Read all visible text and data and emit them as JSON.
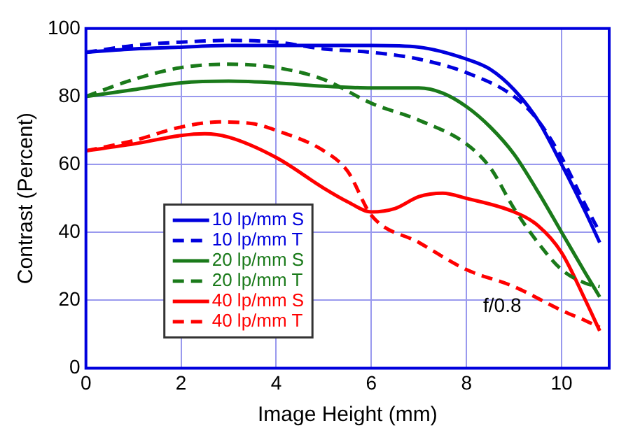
{
  "chart_data": {
    "type": "line",
    "xlabel": "Image Height (mm)",
    "ylabel": "Contrast (Percent)",
    "xlim": [
      0,
      11
    ],
    "xticks": [
      0,
      2,
      4,
      6,
      8,
      10
    ],
    "ylim": [
      0,
      100
    ],
    "yticks": [
      0,
      20,
      40,
      60,
      80,
      100
    ],
    "grid": true,
    "legend": "bottom left",
    "marker": "none",
    "annotations": [
      "f/0.8"
    ],
    "series": [
      {
        "name": "10 lp/mm S",
        "color": "#0000dd",
        "line_style": "solid",
        "x": [
          0,
          1,
          2,
          3,
          4,
          5,
          6,
          7,
          8,
          8.5,
          9,
          9.5,
          10,
          10.5,
          10.8
        ],
        "values": [
          93,
          94,
          94.5,
          95,
          95,
          95,
          95,
          94.5,
          91,
          88,
          82,
          73,
          60,
          46,
          37
        ]
      },
      {
        "name": "10 lp/mm T",
        "color": "#0000dd",
        "line_style": "dashed",
        "x": [
          0,
          1,
          2,
          3,
          4,
          5,
          6,
          7,
          8,
          9,
          9.5,
          10,
          10.5,
          10.8
        ],
        "values": [
          93,
          95,
          96,
          96.5,
          96,
          94,
          93,
          91,
          87,
          80,
          73,
          62,
          48,
          40
        ]
      },
      {
        "name": "20 lp/mm S",
        "color": "#1a7a1a",
        "line_style": "solid",
        "x": [
          0,
          1,
          2,
          3,
          4,
          5,
          6,
          7,
          7.5,
          8,
          8.5,
          9,
          9.5,
          10,
          10.5,
          10.8
        ],
        "values": [
          80,
          82,
          84,
          84.5,
          84,
          83,
          82.5,
          82.5,
          81,
          77,
          71,
          63,
          52,
          40,
          28,
          21
        ]
      },
      {
        "name": "20 lp/mm T",
        "color": "#1a7a1a",
        "line_style": "dashed",
        "x": [
          0,
          1,
          2,
          3,
          4,
          5,
          6,
          7,
          8,
          8.5,
          9,
          9.5,
          10,
          10.5,
          10.8
        ],
        "values": [
          80,
          85,
          88.5,
          89.5,
          88.5,
          85,
          78,
          73,
          66,
          59,
          47,
          37,
          29,
          25,
          24
        ]
      },
      {
        "name": "40 lp/mm S",
        "color": "#ff0000",
        "line_style": "solid",
        "x": [
          0,
          1,
          2,
          2.5,
          3,
          4,
          5,
          5.5,
          6,
          6.5,
          7,
          7.5,
          8,
          9,
          9.5,
          10,
          10.5,
          10.8
        ],
        "values": [
          64,
          66,
          68.5,
          69,
          68,
          62,
          53,
          49,
          46,
          47,
          50.5,
          51.5,
          50,
          46,
          42,
          34,
          20,
          11
        ]
      },
      {
        "name": "40 lp/mm T",
        "color": "#ff0000",
        "line_style": "dashed",
        "x": [
          0,
          1,
          2,
          2.8,
          3.5,
          4,
          5,
          5.5,
          6,
          7,
          8,
          9,
          10,
          10.5,
          10.8
        ],
        "values": [
          64,
          67,
          71,
          72.5,
          72,
          70,
          64,
          58,
          45,
          37,
          29,
          24,
          17,
          14,
          12
        ]
      }
    ]
  }
}
